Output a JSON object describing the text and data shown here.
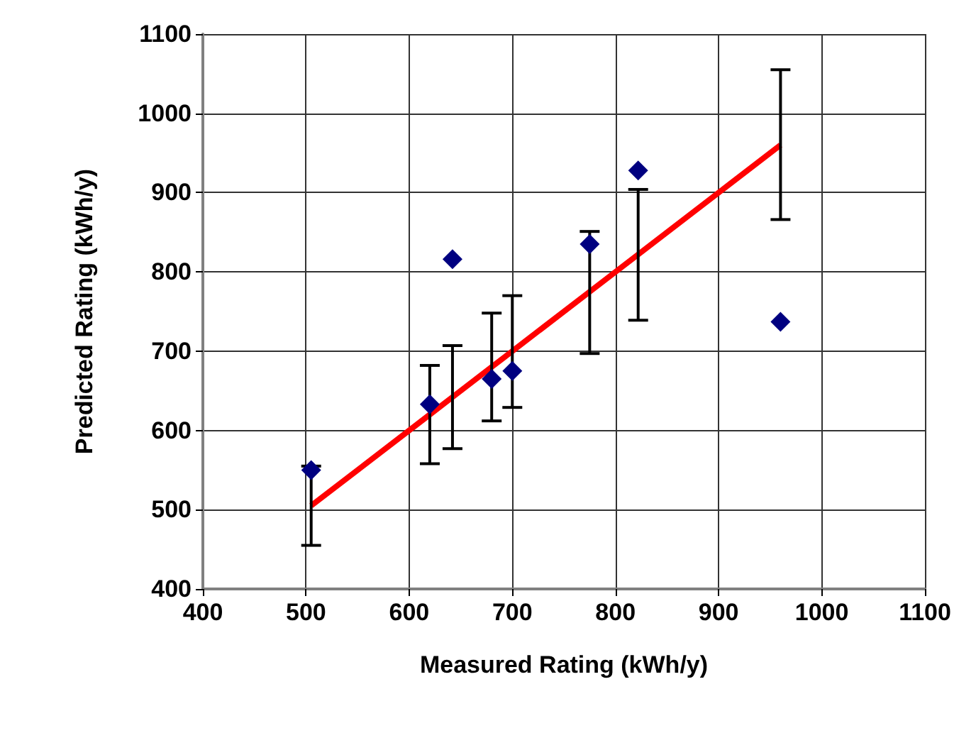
{
  "chart_data": {
    "type": "scatter",
    "xlabel": "Measured Rating (kWh/y)",
    "ylabel": "Predicted Rating (kWh/y)",
    "xlim": [
      400,
      1100
    ],
    "xticks": [
      400,
      500,
      600,
      700,
      800,
      900,
      1000,
      1100
    ],
    "ylim": [
      400,
      1100
    ],
    "yticks": [
      400,
      500,
      600,
      700,
      800,
      900,
      1000,
      1100
    ],
    "grid": true,
    "series": [
      {
        "type": "line",
        "color": "#ff0000",
        "marker": "none",
        "x": [
          505,
          620,
          642,
          680,
          700,
          775,
          822,
          960
        ],
        "values": [
          505,
          620,
          642,
          680,
          700,
          775,
          822,
          960
        ],
        "errors": [
          [
            455,
            555
          ],
          [
            558,
            682
          ],
          [
            577,
            707
          ],
          [
            612,
            748
          ],
          [
            629,
            770
          ],
          [
            697,
            851
          ],
          [
            739,
            904
          ],
          [
            866,
            1055
          ]
        ]
      },
      {
        "color": "#000080",
        "marker": "diamond",
        "x": [
          505,
          620,
          642,
          680,
          700,
          775,
          822,
          960
        ],
        "values": [
          550,
          633,
          816,
          665,
          675,
          835,
          928,
          737
        ]
      }
    ]
  }
}
